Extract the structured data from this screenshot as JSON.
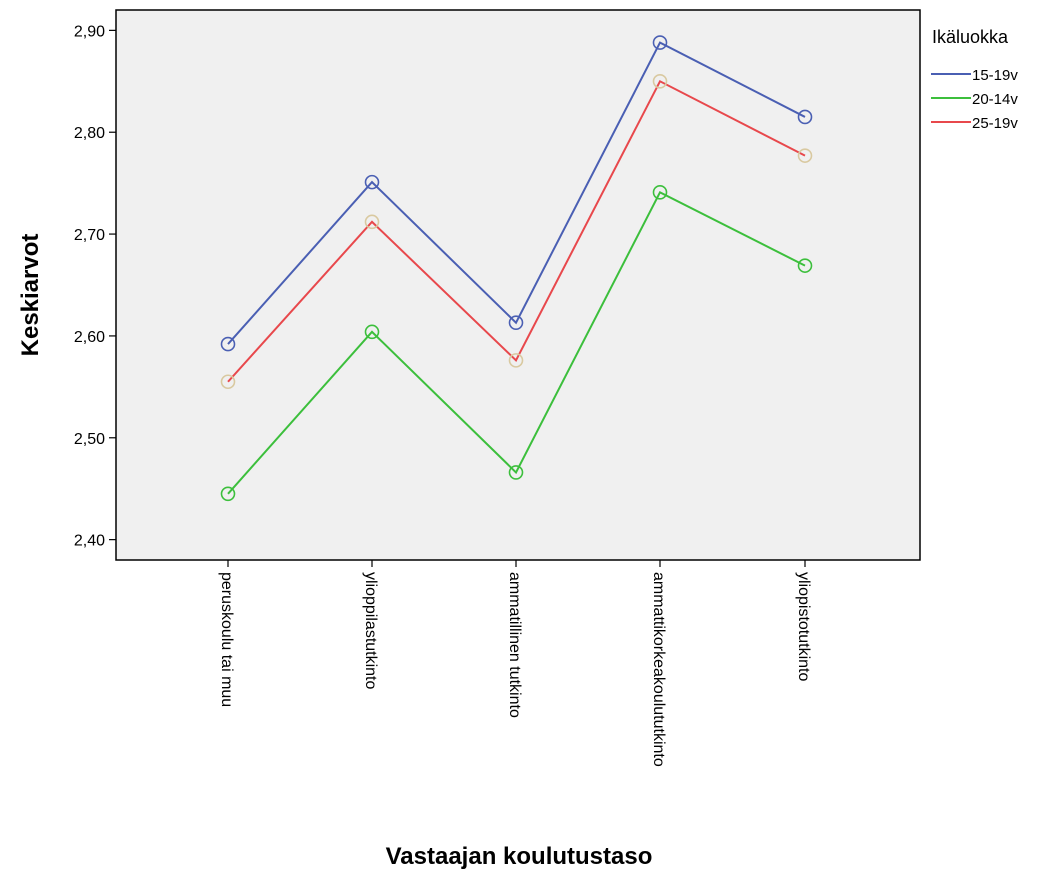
{
  "chart_data": {
    "type": "line",
    "title": "",
    "xlabel": "Vastaajan koulutustaso",
    "ylabel": "Keskiarvot",
    "ylim": [
      2.38,
      2.92
    ],
    "yticks": [
      "2,40",
      "2,50",
      "2,60",
      "2,70",
      "2,80",
      "2,90"
    ],
    "ytick_values": [
      2.4,
      2.5,
      2.6,
      2.7,
      2.8,
      2.9
    ],
    "grid": false,
    "legend_position": "top-right",
    "legend_title": "Ikäluokka",
    "categories": [
      "peruskoulu tai muu",
      "ylioppilastutkinto",
      "ammatillinen tutkinto",
      "ammattikorkeakoulututkinto",
      "yliopistotutkinto"
    ],
    "series": [
      {
        "name": "15-19v",
        "color": "#4a5fb3",
        "values": [
          2.592,
          2.751,
          2.613,
          2.888,
          2.815
        ]
      },
      {
        "name": "20-14v",
        "color": "#3cbf3c",
        "values": [
          2.445,
          2.604,
          2.466,
          2.741,
          2.669
        ]
      },
      {
        "name": "25-19v",
        "color": "#e8484c",
        "values": [
          2.555,
          2.712,
          2.576,
          2.85,
          2.777
        ]
      }
    ],
    "marker_color_red_series": "#d9c9a0",
    "plot_background": "#f0f0f0"
  }
}
